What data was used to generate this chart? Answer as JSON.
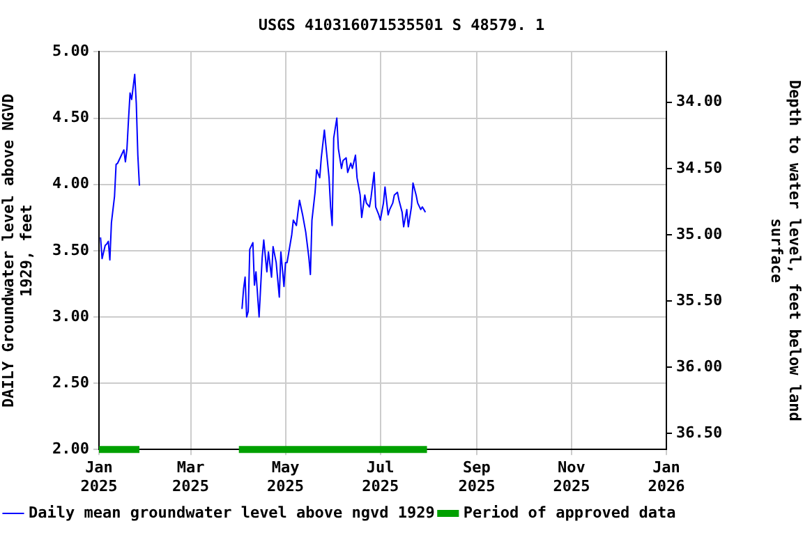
{
  "chart_data": {
    "type": "line",
    "title": "USGS 410316071535501 S 48579. 1",
    "ylabel": "DAILY Groundwater level above NGVD 1929, feet",
    "y2label": "Depth to water level, feet below land surface",
    "xlim": [
      "2025-01-01",
      "2026-01-01"
    ],
    "xticks": [
      {
        "value": "2025-01-01",
        "label": "Jan 2025"
      },
      {
        "value": "2025-03-01",
        "label": "Mar 2025"
      },
      {
        "value": "2025-05-01",
        "label": "May 2025"
      },
      {
        "value": "2025-07-01",
        "label": "Jul 2025"
      },
      {
        "value": "2025-09-01",
        "label": "Sep 2025"
      },
      {
        "value": "2025-11-01",
        "label": "Nov 2025"
      },
      {
        "value": "2026-01-01",
        "label": "Jan 2026"
      }
    ],
    "ylim": [
      2,
      5
    ],
    "yticks": [
      {
        "value": 2,
        "label": "2.00"
      },
      {
        "value": 2.5,
        "label": "2.50"
      },
      {
        "value": 3,
        "label": "3.00"
      },
      {
        "value": 3.5,
        "label": "3.50"
      },
      {
        "value": 4,
        "label": "4.00"
      },
      {
        "value": 4.5,
        "label": "4.50"
      },
      {
        "value": 5,
        "label": "5.00"
      }
    ],
    "y2lim": [
      36.62,
      33.62
    ],
    "y2ticks": [
      {
        "value": 34,
        "label": "34.00"
      },
      {
        "value": 34.5,
        "label": "34.50"
      },
      {
        "value": 35,
        "label": "35.00"
      },
      {
        "value": 35.5,
        "label": "35.50"
      },
      {
        "value": 36,
        "label": "36.00"
      },
      {
        "value": 36.5,
        "label": "36.50"
      }
    ],
    "grid": true,
    "legend": "bottom",
    "marker": "none",
    "series": [
      {
        "name": "Daily mean groundwater level above ngvd 1929",
        "color": "#0000ff",
        "x": [
          "2025-01-02",
          "2025-01-03",
          "2025-01-05",
          "2025-01-06",
          "2025-01-07",
          "2025-01-08",
          "2025-01-09",
          "2025-01-11",
          "2025-01-12",
          "2025-01-13",
          "2025-01-15",
          "2025-01-17",
          "2025-01-18",
          "2025-01-19",
          "2025-01-20",
          "2025-01-21",
          "2025-01-22",
          "2025-01-24",
          "2025-01-25",
          "2025-01-26",
          "2025-01-27",
          "2025-02-15",
          "2025-04-03",
          "2025-04-04",
          "2025-04-05",
          "2025-04-06",
          "2025-04-07",
          "2025-04-08",
          "2025-04-10",
          "2025-04-11",
          "2025-04-12",
          "2025-04-14",
          "2025-04-16",
          "2025-04-17",
          "2025-04-19",
          "2025-04-20",
          "2025-04-22",
          "2025-04-23",
          "2025-04-25",
          "2025-04-27",
          "2025-04-28",
          "2025-04-30",
          "2025-05-01",
          "2025-05-02",
          "2025-05-05",
          "2025-05-06",
          "2025-05-08",
          "2025-05-09",
          "2025-05-10",
          "2025-05-12",
          "2025-05-14",
          "2025-05-16",
          "2025-05-17",
          "2025-05-18",
          "2025-05-20",
          "2025-05-21",
          "2025-05-23",
          "2025-05-24",
          "2025-05-26",
          "2025-05-27",
          "2025-05-29",
          "2025-05-30",
          "2025-05-31",
          "2025-06-01",
          "2025-06-03",
          "2025-06-04",
          "2025-06-06",
          "2025-06-07",
          "2025-06-09",
          "2025-06-10",
          "2025-06-12",
          "2025-06-13",
          "2025-06-15",
          "2025-06-16",
          "2025-06-18",
          "2025-06-19",
          "2025-06-21",
          "2025-06-22",
          "2025-06-24",
          "2025-06-25",
          "2025-06-27",
          "2025-06-28",
          "2025-06-30",
          "2025-07-01",
          "2025-07-03",
          "2025-07-04",
          "2025-07-06",
          "2025-07-07",
          "2025-07-09",
          "2025-07-10",
          "2025-07-12",
          "2025-07-13",
          "2025-07-15",
          "2025-07-16",
          "2025-07-18",
          "2025-07-19",
          "2025-07-21",
          "2025-07-22",
          "2025-07-24",
          "2025-07-25",
          "2025-07-27",
          "2025-07-28",
          "2025-07-30"
        ],
        "values": [
          3.6,
          3.44,
          3.54,
          3.55,
          3.57,
          3.43,
          3.71,
          3.91,
          4.15,
          4.16,
          4.21,
          4.26,
          4.17,
          4.27,
          4.49,
          4.69,
          4.64,
          4.83,
          4.61,
          4.22,
          3.99,
          null,
          3.06,
          3.21,
          3.3,
          3.0,
          3.04,
          3.51,
          3.56,
          3.24,
          3.34,
          3.0,
          3.45,
          3.58,
          3.34,
          3.49,
          3.3,
          3.53,
          3.41,
          3.15,
          3.49,
          3.23,
          3.41,
          3.41,
          3.62,
          3.73,
          3.69,
          3.79,
          3.88,
          3.77,
          3.64,
          3.45,
          3.32,
          3.73,
          3.94,
          4.11,
          4.05,
          4.2,
          4.41,
          4.29,
          4.05,
          3.83,
          3.69,
          4.35,
          4.5,
          4.27,
          4.12,
          4.18,
          4.2,
          4.09,
          4.16,
          4.12,
          4.22,
          4.05,
          3.92,
          3.75,
          3.92,
          3.86,
          3.83,
          3.9,
          4.09,
          3.83,
          3.77,
          3.73,
          3.86,
          3.98,
          3.77,
          3.81,
          3.86,
          3.92,
          3.94,
          3.88,
          3.79,
          3.68,
          3.81,
          3.68,
          3.83,
          4.01,
          3.92,
          3.86,
          3.81,
          3.83,
          3.79
        ]
      },
      {
        "name": "Period of approved data",
        "color": "#00a000",
        "x": [
          "2025-01-01",
          "2025-01-27",
          "2025-02-15",
          "2025-04-01",
          "2025-07-31"
        ],
        "values": [
          2,
          2,
          null,
          2,
          2
        ]
      }
    ]
  }
}
